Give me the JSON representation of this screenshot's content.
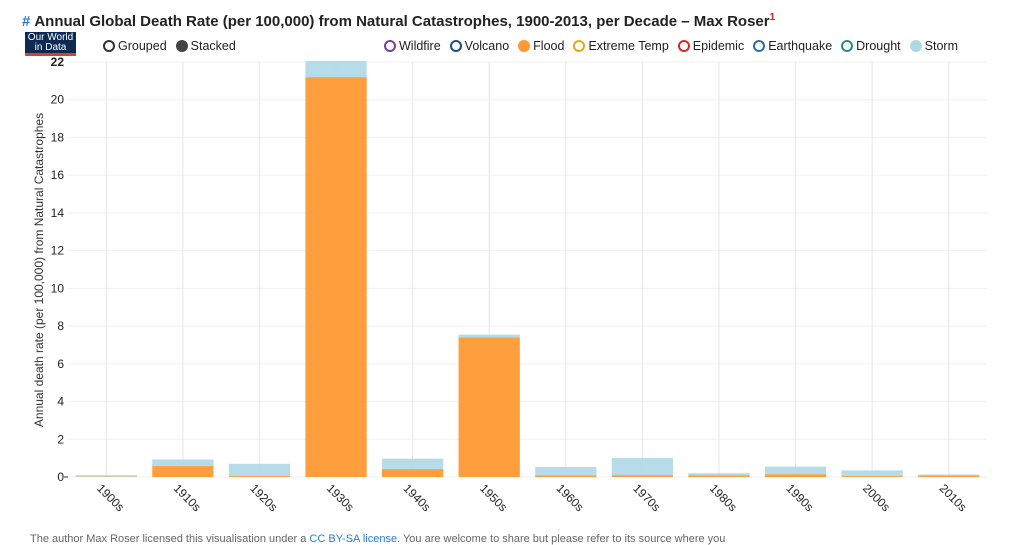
{
  "title": {
    "hash": "#",
    "text": "Annual Global Death Rate (per 100,000) from Natural Catastrophes, 1900-2013, per Decade – Max Roser",
    "footnote": "1"
  },
  "logo": {
    "line1": "Our World",
    "line2": "in Data"
  },
  "controls": [
    {
      "label": "Grouped",
      "selected": false
    },
    {
      "label": "Stacked",
      "selected": true
    }
  ],
  "legend": [
    {
      "label": "Wildfire",
      "color": "#7b3f9e",
      "active": false
    },
    {
      "label": "Volcano",
      "color": "#1d4e7a",
      "active": false
    },
    {
      "label": "Flood",
      "color": "#ff9933",
      "active": true
    },
    {
      "label": "Extreme Temp",
      "color": "#e6a817",
      "active": false
    },
    {
      "label": "Epidemic",
      "color": "#d62728",
      "active": false
    },
    {
      "label": "Earthquake",
      "color": "#2e6da4",
      "active": false
    },
    {
      "label": "Drought",
      "color": "#2a8a8a",
      "active": false
    },
    {
      "label": "Storm",
      "color": "#add8e6",
      "active": true
    }
  ],
  "footer": {
    "text": "The author Max Roser licensed this visualisation under a ",
    "link": "CC BY-SA license",
    "rest": ". You are welcome to share but please refer to its source where you"
  },
  "chart_data": {
    "type": "bar",
    "stacked": true,
    "categories": [
      "1900s",
      "1910s",
      "1920s",
      "1930s",
      "1940s",
      "1950s",
      "1960s",
      "1970s",
      "1980s",
      "1990s",
      "2000s",
      "2010s"
    ],
    "series": [
      {
        "name": "Flood",
        "color": "#ff9933",
        "values": [
          0.02,
          0.58,
          0.05,
          21.2,
          0.42,
          7.4,
          0.08,
          0.1,
          0.08,
          0.15,
          0.05,
          0.08
        ]
      },
      {
        "name": "Storm",
        "color": "#add8e6",
        "values": [
          0.08,
          0.35,
          0.65,
          0.85,
          0.55,
          0.15,
          0.45,
          0.9,
          0.12,
          0.4,
          0.3,
          0.05
        ]
      }
    ],
    "ylabel": "Annual death rate (per 100,000) from Natural Catastrophes",
    "xlabel": "",
    "ylim": [
      0,
      22
    ],
    "yticks": [
      0,
      2,
      4,
      6,
      8,
      10,
      12,
      14,
      16,
      18,
      20,
      22
    ],
    "grid": true
  }
}
